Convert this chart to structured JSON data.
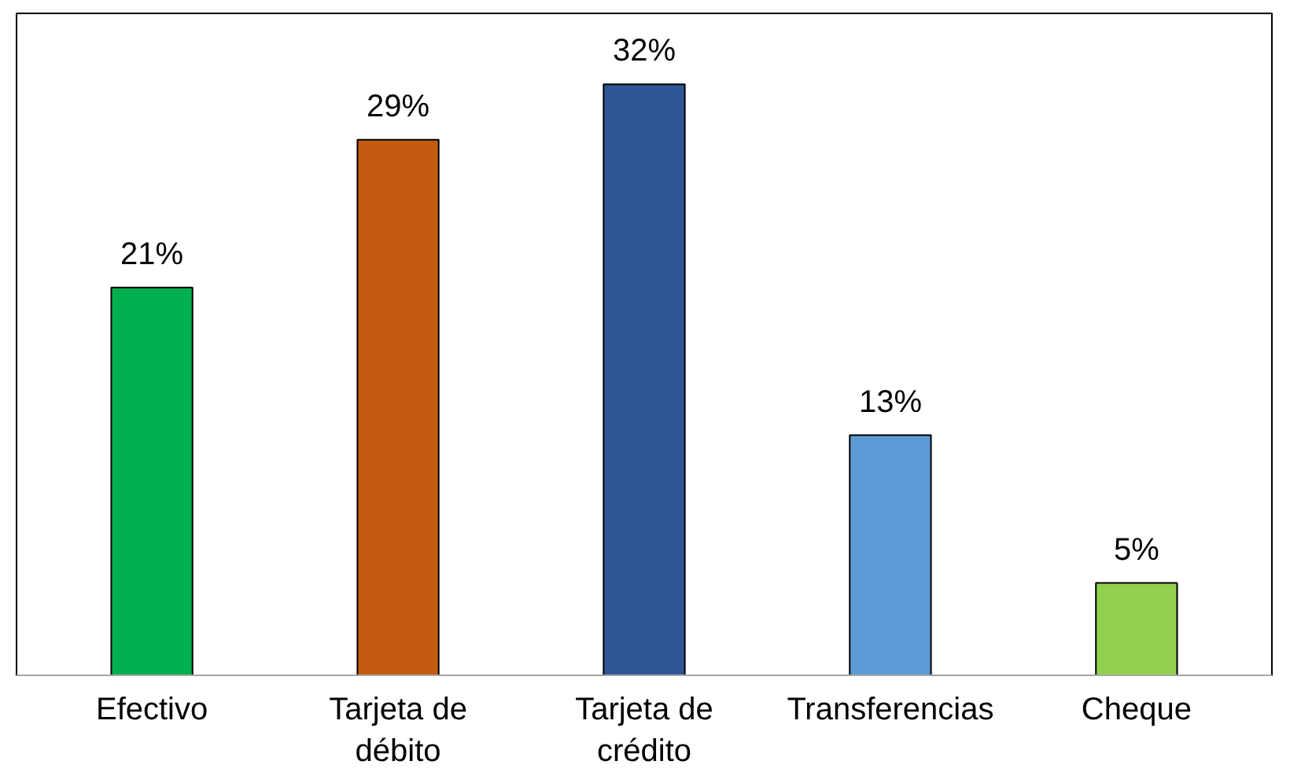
{
  "chart_data": {
    "type": "bar",
    "categories": [
      "Efectivo",
      "Tarjeta de débito",
      "Tarjeta de crédito",
      "Transferencias",
      "Cheque"
    ],
    "values": [
      21,
      29,
      32,
      13,
      5
    ],
    "colors": [
      "#00b050",
      "#c55a11",
      "#2f5597",
      "#5b9bd5",
      "#92d050"
    ],
    "value_labels": [
      "21%",
      "29%",
      "32%",
      "13%",
      "5%"
    ],
    "grid": false
  }
}
